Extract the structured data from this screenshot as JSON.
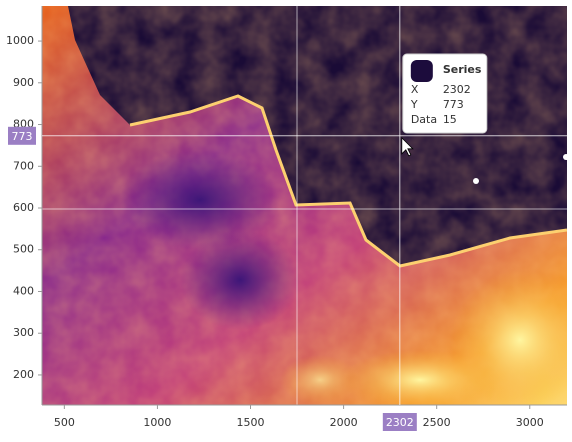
{
  "chart_data": {
    "type": "heatmap",
    "xlim": [
      380,
      3200
    ],
    "ylim": [
      128,
      1084
    ],
    "xticks": [
      500,
      1000,
      1500,
      2000,
      2500,
      3000
    ],
    "yticks": [
      200,
      300,
      400,
      500,
      600,
      700,
      800,
      900,
      1000
    ],
    "crosshair": {
      "x": 2302,
      "y": 773
    },
    "tooltip": {
      "series": "Series",
      "color": "#1c0c3c",
      "rows": [
        [
          "X",
          2302
        ],
        [
          "Y",
          773
        ],
        [
          "Data",
          15
        ]
      ]
    }
  }
}
